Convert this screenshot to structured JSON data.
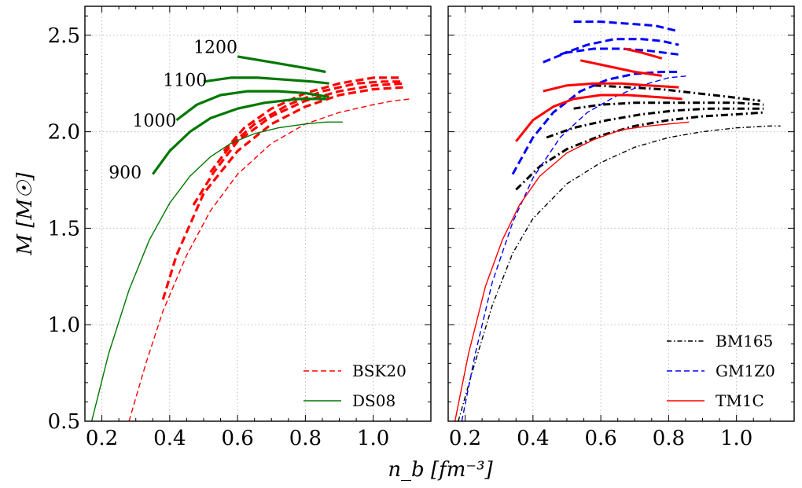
{
  "chart_data": {
    "type": "line",
    "ylabel": "M [M☉]",
    "xlabel": "n_b [fm⁻³]",
    "ylim": [
      0.5,
      2.65
    ],
    "yticks": [
      "0.5",
      "1.0",
      "1.5",
      "2.0",
      "2.5"
    ],
    "grid": true,
    "panels": [
      {
        "name": "left",
        "xlim": [
          0.15,
          1.17
        ],
        "xticks": [
          "0.2",
          "0.4",
          "0.6",
          "0.8",
          "1.0"
        ],
        "legend": {
          "position": "lower-right",
          "entries": [
            {
              "label": "BSK20",
              "color": "#ff0000",
              "style": "dashed"
            },
            {
              "label": "DS08",
              "color": "#007700",
              "style": "solid"
            }
          ]
        },
        "annotations": [
          {
            "text": "1200",
            "x": 0.47,
            "y": 2.44
          },
          {
            "text": "1100",
            "x": 0.38,
            "y": 2.27
          },
          {
            "text": "1000",
            "x": 0.29,
            "y": 2.06
          },
          {
            "text": "900",
            "x": 0.22,
            "y": 1.79
          }
        ],
        "series": [
          {
            "name": "BSK20",
            "role": "base",
            "color": "#ff0000",
            "style": "dashed",
            "width": 1.4,
            "x": [
              0.28,
              0.33,
              0.38,
              0.45,
              0.52,
              0.6,
              0.7,
              0.8,
              0.9,
              1.0,
              1.06,
              1.11
            ],
            "y": [
              0.5,
              0.8,
              1.07,
              1.36,
              1.59,
              1.78,
              1.94,
              2.04,
              2.1,
              2.14,
              2.16,
              2.17
            ]
          },
          {
            "name": "BSK20 hybrid",
            "color": "#ff0000",
            "style": "dashed",
            "width": 3.2,
            "x": [
              0.38,
              0.42,
              0.5,
              0.6,
              0.7,
              0.8,
              0.9,
              1.0,
              1.09
            ],
            "y": [
              1.13,
              1.36,
              1.68,
              1.9,
              2.04,
              2.13,
              2.19,
              2.22,
              2.23
            ]
          },
          {
            "name": "BSK20 hybrid",
            "color": "#ff0000",
            "style": "dashed",
            "width": 3.2,
            "x": [
              0.47,
              0.53,
              0.6,
              0.7,
              0.8,
              0.9,
              1.0,
              1.09
            ],
            "y": [
              1.62,
              1.79,
              1.95,
              2.08,
              2.16,
              2.21,
              2.24,
              2.25
            ]
          },
          {
            "name": "BSK20 hybrid",
            "color": "#ff0000",
            "style": "dashed",
            "width": 3.2,
            "x": [
              0.52,
              0.58,
              0.65,
              0.75,
              0.85,
              0.95,
              1.03,
              1.08
            ],
            "y": [
              1.79,
              1.93,
              2.04,
              2.14,
              2.21,
              2.25,
              2.26,
              2.26
            ]
          },
          {
            "name": "BSK20 hybrid",
            "color": "#ff0000",
            "style": "dashed",
            "width": 3.2,
            "x": [
              0.56,
              0.62,
              0.7,
              0.8,
              0.9,
              1.0,
              1.08
            ],
            "y": [
              1.9,
              2.02,
              2.12,
              2.2,
              2.25,
              2.28,
              2.28
            ]
          },
          {
            "name": "DS08",
            "role": "base",
            "color": "#007700",
            "style": "solid",
            "width": 1.4,
            "x": [
              0.17,
              0.22,
              0.28,
              0.34,
              0.4,
              0.46,
              0.52,
              0.58,
              0.65,
              0.72,
              0.8,
              0.86,
              0.91
            ],
            "y": [
              0.5,
              0.85,
              1.18,
              1.44,
              1.63,
              1.77,
              1.87,
              1.94,
              1.99,
              2.02,
              2.04,
              2.05,
              2.05
            ]
          },
          {
            "name": "DS08 hybrid 900",
            "color": "#007700",
            "style": "solid",
            "width": 3.2,
            "x": [
              0.35,
              0.4,
              0.46,
              0.52,
              0.6,
              0.68,
              0.78,
              0.86
            ],
            "y": [
              1.78,
              1.9,
              2.0,
              2.07,
              2.12,
              2.15,
              2.17,
              2.17
            ]
          },
          {
            "name": "DS08 hybrid 1000",
            "color": "#007700",
            "style": "solid",
            "width": 3.2,
            "x": [
              0.42,
              0.48,
              0.55,
              0.63,
              0.72,
              0.8,
              0.87
            ],
            "y": [
              2.06,
              2.14,
              2.19,
              2.21,
              2.21,
              2.2,
              2.18
            ]
          },
          {
            "name": "DS08 hybrid 1100",
            "color": "#007700",
            "style": "solid",
            "width": 3.2,
            "x": [
              0.5,
              0.58,
              0.66,
              0.74,
              0.82,
              0.87
            ],
            "y": [
              2.26,
              2.28,
              2.28,
              2.27,
              2.26,
              2.25
            ]
          },
          {
            "name": "DS08 hybrid 1200",
            "color": "#007700",
            "style": "solid",
            "width": 3.2,
            "x": [
              0.6,
              0.7,
              0.8,
              0.86
            ],
            "y": [
              2.39,
              2.36,
              2.33,
              2.31
            ]
          }
        ]
      },
      {
        "name": "right",
        "xlim": [
          0.15,
          1.17
        ],
        "xticks": [
          "0.2",
          "0.4",
          "0.6",
          "0.8",
          "1.0"
        ],
        "legend": {
          "position": "lower-right",
          "entries": [
            {
              "label": "BM165",
              "color": "#000000",
              "style": "dashdot"
            },
            {
              "label": "GM1Z0",
              "color": "#0000ff",
              "style": "dashed"
            },
            {
              "label": "TM1C",
              "color": "#ff0000",
              "style": "solid"
            }
          ]
        },
        "series": [
          {
            "name": "BM165",
            "role": "base",
            "color": "#000000",
            "style": "dashdot",
            "width": 1.4,
            "x": [
              0.18,
              0.22,
              0.28,
              0.34,
              0.4,
              0.5,
              0.6,
              0.7,
              0.8,
              0.9,
              1.0,
              1.1,
              1.13
            ],
            "y": [
              0.5,
              0.75,
              1.1,
              1.37,
              1.55,
              1.73,
              1.84,
              1.92,
              1.97,
              2.0,
              2.02,
              2.03,
              2.03
            ]
          },
          {
            "name": "BM165 hybrid",
            "color": "#000000",
            "style": "dashdot",
            "width": 3.0,
            "x": [
              0.35,
              0.42,
              0.5,
              0.6,
              0.7,
              0.8,
              0.9,
              1.0,
              1.08
            ],
            "y": [
              1.7,
              1.82,
              1.91,
              1.98,
              2.03,
              2.06,
              2.08,
              2.09,
              2.1
            ]
          },
          {
            "name": "BM165 hybrid",
            "color": "#000000",
            "style": "dashdot",
            "width": 3.0,
            "x": [
              0.44,
              0.52,
              0.62,
              0.72,
              0.82,
              0.92,
              1.02,
              1.08
            ],
            "y": [
              1.97,
              2.02,
              2.06,
              2.09,
              2.11,
              2.12,
              2.12,
              2.12
            ]
          },
          {
            "name": "BM165 hybrid",
            "color": "#000000",
            "style": "dashdot",
            "width": 3.0,
            "x": [
              0.52,
              0.6,
              0.7,
              0.8,
              0.9,
              1.0,
              1.08
            ],
            "y": [
              2.12,
              2.14,
              2.15,
              2.15,
              2.15,
              2.15,
              2.14
            ]
          },
          {
            "name": "BM165 hybrid",
            "color": "#000000",
            "style": "dashdot",
            "width": 3.0,
            "x": [
              0.58,
              0.68,
              0.78,
              0.88,
              0.98,
              1.07
            ],
            "y": [
              2.24,
              2.23,
              2.22,
              2.2,
              2.18,
              2.16
            ]
          },
          {
            "name": "GM1Z0",
            "role": "base",
            "color": "#0000ff",
            "style": "dashed",
            "width": 1.4,
            "x": [
              0.19,
              0.23,
              0.28,
              0.34,
              0.4,
              0.48,
              0.56,
              0.64,
              0.72,
              0.8,
              0.86
            ],
            "y": [
              0.5,
              0.85,
              1.22,
              1.53,
              1.76,
              1.97,
              2.1,
              2.18,
              2.24,
              2.28,
              2.29
            ]
          },
          {
            "name": "GM1Z0 hybrid",
            "color": "#0000ff",
            "style": "dashed",
            "width": 3.0,
            "x": [
              0.34,
              0.4,
              0.46,
              0.54,
              0.62,
              0.7,
              0.78,
              0.83
            ],
            "y": [
              1.78,
              1.97,
              2.1,
              2.21,
              2.27,
              2.3,
              2.31,
              2.31
            ]
          },
          {
            "name": "GM1Z0 hybrid",
            "color": "#0000ff",
            "style": "dashed",
            "width": 3.0,
            "x": [
              0.43,
              0.5,
              0.58,
              0.66,
              0.74,
              0.83
            ],
            "y": [
              2.36,
              2.41,
              2.43,
              2.43,
              2.42,
              2.4
            ]
          },
          {
            "name": "GM1Z0 hybrid",
            "color": "#0000ff",
            "style": "dashed",
            "width": 3.0,
            "x": [
              0.48,
              0.56,
              0.64,
              0.72,
              0.78,
              0.83
            ],
            "y": [
              2.4,
              2.45,
              2.48,
              2.48,
              2.47,
              2.45
            ]
          },
          {
            "name": "GM1Z0 hybrid",
            "color": "#0000ff",
            "style": "dashed",
            "width": 3.0,
            "x": [
              0.52,
              0.6,
              0.68,
              0.76,
              0.83
            ],
            "y": [
              2.57,
              2.57,
              2.56,
              2.55,
              2.52
            ]
          },
          {
            "name": "TM1C",
            "role": "base",
            "color": "#ff0000",
            "style": "solid",
            "width": 1.4,
            "x": [
              0.17,
              0.21,
              0.26,
              0.31,
              0.36,
              0.42,
              0.5,
              0.58,
              0.66,
              0.74,
              0.8,
              0.86
            ],
            "y": [
              0.5,
              0.85,
              1.2,
              1.44,
              1.62,
              1.77,
              1.89,
              1.96,
              2.01,
              2.03,
              2.04,
              2.05
            ]
          },
          {
            "name": "TM1C hybrid",
            "color": "#ff0000",
            "style": "solid",
            "width": 3.0,
            "x": [
              0.35,
              0.4,
              0.46,
              0.52,
              0.6,
              0.68,
              0.76,
              0.84
            ],
            "y": [
              1.95,
              2.06,
              2.13,
              2.17,
              2.19,
              2.19,
              2.18,
              2.17
            ]
          },
          {
            "name": "TM1C hybrid",
            "color": "#ff0000",
            "style": "solid",
            "width": 3.0,
            "x": [
              0.43,
              0.5,
              0.58,
              0.66,
              0.74,
              0.83
            ],
            "y": [
              2.21,
              2.24,
              2.25,
              2.25,
              2.24,
              2.23
            ]
          },
          {
            "name": "TM1C hybrid",
            "color": "#ff0000",
            "style": "solid",
            "width": 3.0,
            "x": [
              0.54,
              0.62,
              0.7,
              0.78
            ],
            "y": [
              2.37,
              2.34,
              2.31,
              2.29
            ]
          },
          {
            "name": "TM1C hybrid",
            "color": "#ff0000",
            "style": "solid",
            "width": 3.0,
            "x": [
              0.67,
              0.72,
              0.78
            ],
            "y": [
              2.43,
              2.41,
              2.38
            ]
          }
        ]
      }
    ]
  }
}
